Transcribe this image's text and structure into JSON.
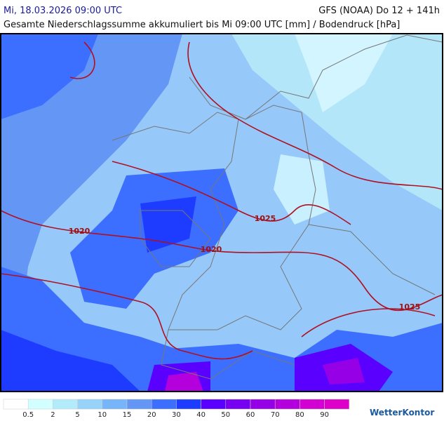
{
  "header": {
    "datetime": "Mi, 18.03.2026 09:00 UTC",
    "model": "GFS (NOAA) Do 12 + 141h",
    "subtitle": "Gesamte Niederschlagssumme akkumuliert bis Mi 09:00 UTC [mm] / Bodendruck [hPa]"
  },
  "isobars": {
    "labels": [
      "1020",
      "1025",
      "1020",
      "1025"
    ]
  },
  "legend": {
    "colors": [
      "#ffffff",
      "#d2ffff",
      "#b4ebfa",
      "#96d2fa",
      "#78b4fa",
      "#6496f5",
      "#3c6eff",
      "#1e3cff",
      "#5a00ff",
      "#7800f0",
      "#9600e6",
      "#b400dc",
      "#d200d2",
      "#dc00c8"
    ],
    "labels": [
      "0.5",
      "2",
      "5",
      "10",
      "15",
      "20",
      "30",
      "40",
      "50",
      "60",
      "70",
      "80",
      "90"
    ]
  },
  "logo": "WetterKontor"
}
